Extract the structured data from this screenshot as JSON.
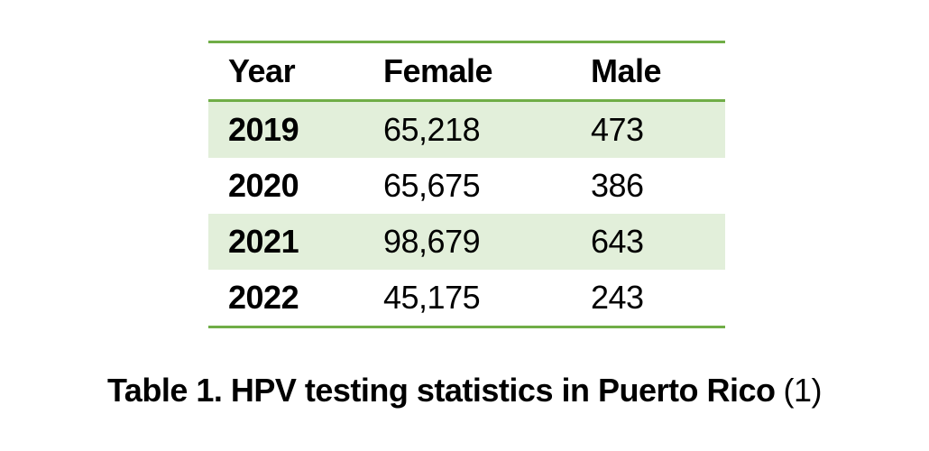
{
  "table": {
    "columns": [
      {
        "label": "Year"
      },
      {
        "label": "Female"
      },
      {
        "label": "Male"
      }
    ],
    "rows": [
      {
        "year": "2019",
        "female": "65,218",
        "male": "473"
      },
      {
        "year": "2020",
        "female": "65,675",
        "male": "386"
      },
      {
        "year": "2021",
        "female": "98,679",
        "male": "643"
      },
      {
        "year": "2022",
        "female": "45,175",
        "male": "243"
      }
    ]
  },
  "caption": {
    "title": "Table 1. HPV testing statistics in Puerto Rico",
    "reference": "(1)"
  },
  "colors": {
    "border_green": "#70AD47",
    "band_green": "#E2EFDA",
    "text": "#000000",
    "page_background": "#FFFFFF"
  },
  "chart_data": {
    "type": "table",
    "title": "Table 1. HPV testing statistics in Puerto Rico (1)",
    "columns": [
      "Year",
      "Female",
      "Male"
    ],
    "rows": [
      [
        "2019",
        65218,
        473
      ],
      [
        "2020",
        65675,
        386
      ],
      [
        "2021",
        98679,
        643
      ],
      [
        "2022",
        45175,
        243
      ]
    ]
  }
}
